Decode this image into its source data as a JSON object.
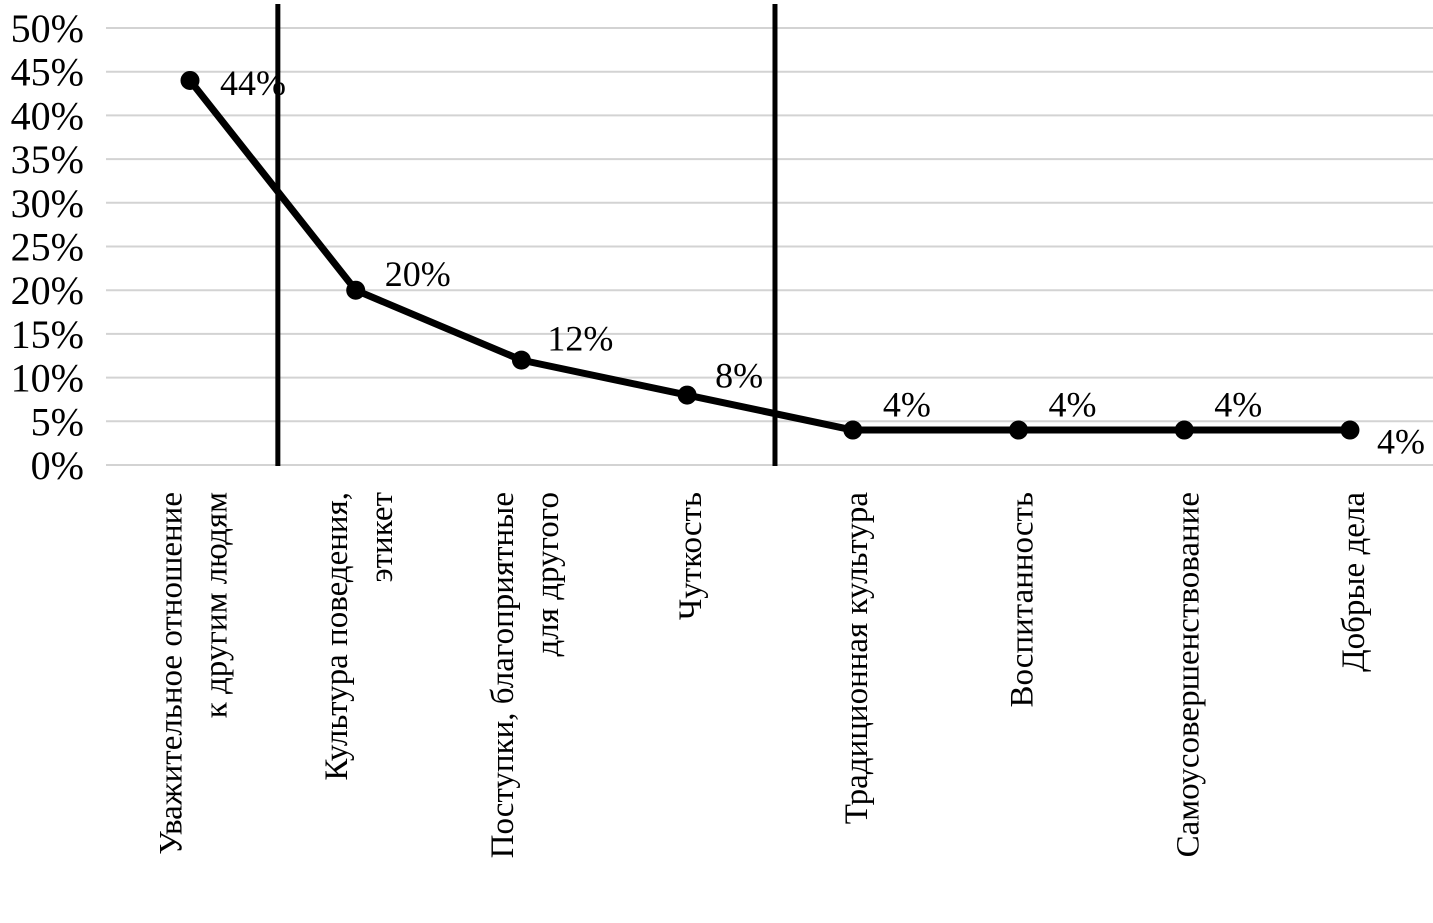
{
  "figure": {
    "description": "Line chart of percentages by moral-education category (Russian)"
  },
  "chart_data": {
    "type": "line",
    "title": "",
    "xlabel": "",
    "ylabel": "",
    "ylim": [
      0,
      50
    ],
    "y_tick_step": 5,
    "grid": true,
    "legend": "none",
    "y_tick_labels": [
      "0%",
      "5%",
      "10%",
      "15%",
      "20%",
      "25%",
      "30%",
      "35%",
      "40%",
      "45%",
      "50%"
    ],
    "categories": [
      {
        "label": "Уважительное отношение к другим людям",
        "lines": [
          "Уважительное отношение",
          "к другим людям"
        ]
      },
      {
        "label": "Культура поведения, этикет",
        "lines": [
          "Культура поведения,",
          "этикет"
        ]
      },
      {
        "label": "Поступки, благоприятные для другого",
        "lines": [
          "Поступки, благоприятные",
          "для другого"
        ]
      },
      {
        "label": "Чуткость",
        "lines": [
          "Чуткость"
        ]
      },
      {
        "label": "Традиционная культура",
        "lines": [
          "Традиционная культура"
        ]
      },
      {
        "label": "Воспитанность",
        "lines": [
          "Воспитанность"
        ]
      },
      {
        "label": "Самоусовершенствование",
        "lines": [
          "Самоусовершенствование"
        ]
      },
      {
        "label": "Добрые дела",
        "lines": [
          "Добрые дела"
        ]
      }
    ],
    "series": [
      {
        "name": "percent",
        "values": [
          44,
          20,
          12,
          8,
          4,
          4,
          4,
          4
        ],
        "data_labels": [
          "44%",
          "20%",
          "12%",
          "8%",
          "4%",
          "4%",
          "4%",
          "4%"
        ]
      }
    ],
    "dividers_after_category_index": [
      0,
      3
    ],
    "colors": {
      "line": "#000000",
      "marker": "#000000",
      "grid": "#d3d3d3",
      "divider": "#000000",
      "text": "#000000",
      "background": "#ffffff"
    }
  }
}
